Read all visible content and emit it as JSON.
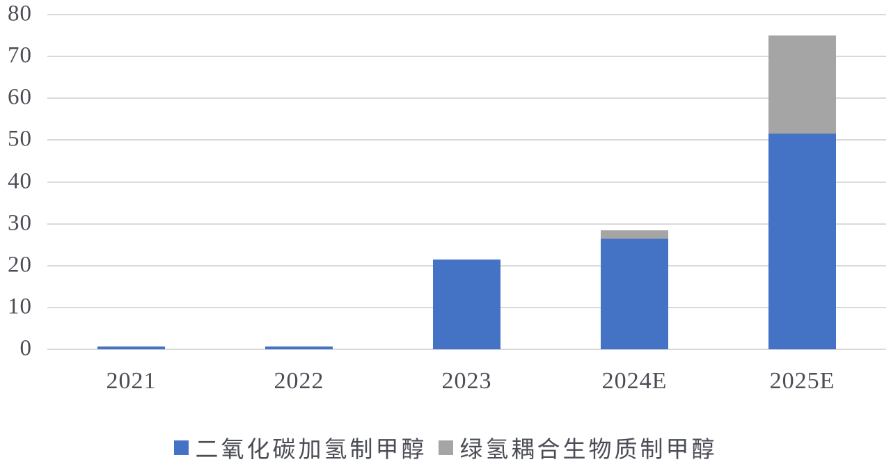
{
  "chart_data": {
    "type": "bar",
    "stacked": true,
    "title": "",
    "xlabel": "",
    "ylabel": "",
    "categories": [
      "2021",
      "2022",
      "2023",
      "2024E",
      "2025E"
    ],
    "series": [
      {
        "name": "二氧化碳加氢制甲醇",
        "color": "#4472C4",
        "values": [
          0.6,
          0.6,
          21.5,
          26.5,
          51.5
        ]
      },
      {
        "name": "绿氢耦合生物质制甲醇",
        "color": "#A5A5A5",
        "values": [
          0,
          0,
          0,
          2.0,
          23.5
        ]
      }
    ],
    "ylim": [
      0,
      80
    ],
    "yticks": [
      0,
      10,
      20,
      30,
      40,
      50,
      60,
      70,
      80
    ],
    "grid": true,
    "legend_position": "bottom-center"
  },
  "colors": {
    "series_blue": "#4472C4",
    "series_gray": "#A5A5A5",
    "gridline": "#D9D9D9",
    "axis_text": "#4B4D55",
    "background": "#FFFFFF"
  }
}
